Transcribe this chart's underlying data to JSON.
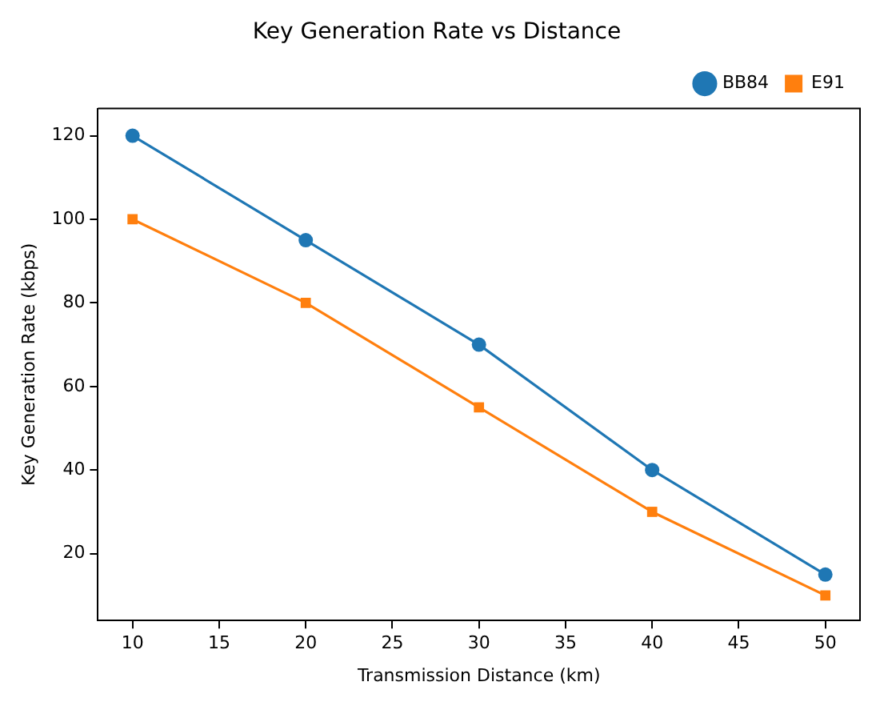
{
  "chart_data": {
    "type": "line",
    "title": "Key Generation Rate vs Distance",
    "xlabel": "Transmission Distance (km)",
    "ylabel": "Key Generation Rate (kbps)",
    "x": [
      10,
      20,
      30,
      40,
      50
    ],
    "series": [
      {
        "name": "BB84",
        "color": "#1f77b4",
        "marker": "circle",
        "values": [
          120,
          95,
          70,
          40,
          15
        ]
      },
      {
        "name": "E91",
        "color": "#ff7f0e",
        "marker": "square",
        "values": [
          100,
          80,
          55,
          30,
          10
        ]
      }
    ],
    "xlim": [
      8,
      52
    ],
    "xticks": [
      10,
      15,
      20,
      25,
      30,
      35,
      40,
      45,
      50
    ],
    "ylim": [
      4,
      126.5
    ],
    "yticks": [
      20,
      40,
      60,
      80,
      100,
      120
    ],
    "grid": false,
    "legend": "top right",
    "line_style": "solid"
  }
}
